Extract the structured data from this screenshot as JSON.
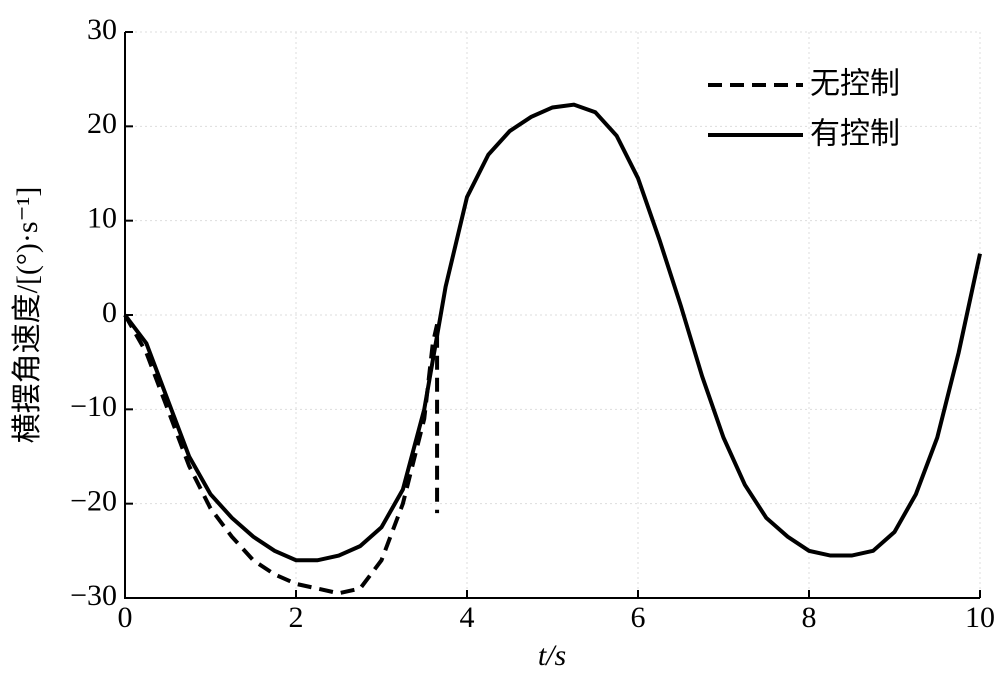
{
  "chart_data": {
    "type": "line",
    "xlabel": "t/s",
    "ylabel": "横摆角速度/[(°)·s⁻¹]",
    "xlim": [
      0,
      10
    ],
    "ylim": [
      -30,
      30
    ],
    "xticks": [
      0,
      2,
      4,
      6,
      8,
      10
    ],
    "yticks": [
      {
        "value": -30,
        "label": "−30"
      },
      {
        "value": -20,
        "label": "−20"
      },
      {
        "value": -10,
        "label": "−10"
      },
      0,
      10,
      20,
      30
    ],
    "grid": true,
    "legend": "upper right",
    "series": [
      {
        "name": "无控制",
        "color": "#000000",
        "dash": true,
        "x": [
          0,
          0.25,
          0.5,
          0.75,
          1.0,
          1.25,
          1.5,
          1.75,
          2.0,
          2.25,
          2.5,
          2.75,
          3.0,
          3.25,
          3.5,
          3.6,
          3.65,
          3.65
        ],
        "values": [
          0,
          -4,
          -10,
          -16,
          -20.5,
          -23.5,
          -26,
          -27.5,
          -28.5,
          -29,
          -29.5,
          -29,
          -26,
          -20,
          -11,
          -3,
          -1,
          -21
        ]
      },
      {
        "name": "有控制",
        "color": "#000000",
        "dash": false,
        "x": [
          0,
          0.25,
          0.5,
          0.75,
          1.0,
          1.25,
          1.5,
          1.75,
          2.0,
          2.25,
          2.5,
          2.75,
          3.0,
          3.25,
          3.5,
          3.75,
          4.0,
          4.25,
          4.5,
          4.75,
          5.0,
          5.25,
          5.5,
          5.75,
          6.0,
          6.25,
          6.5,
          6.75,
          7.0,
          7.25,
          7.5,
          7.75,
          8.0,
          8.25,
          8.5,
          8.75,
          9.0,
          9.25,
          9.5,
          9.75,
          10.0
        ],
        "values": [
          0,
          -3,
          -9,
          -15,
          -19,
          -21.5,
          -23.5,
          -25,
          -26,
          -26,
          -25.5,
          -24.5,
          -22.5,
          -18.5,
          -10,
          3,
          12.5,
          17,
          19.5,
          21,
          22,
          22.3,
          21.5,
          19,
          14.5,
          8,
          1,
          -6.5,
          -13,
          -18,
          -21.5,
          -23.5,
          -25,
          -25.5,
          -25.5,
          -25,
          -23,
          -19,
          -13,
          -4,
          6.5
        ]
      }
    ]
  }
}
